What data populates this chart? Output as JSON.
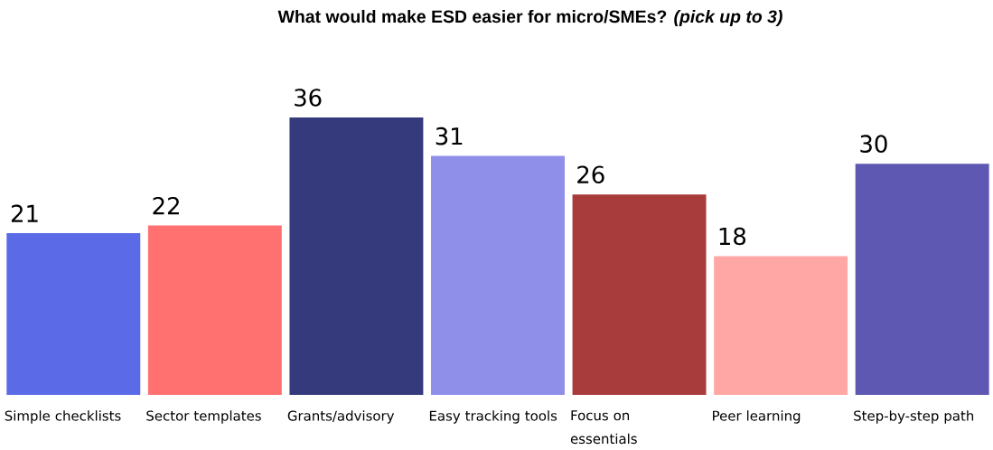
{
  "chart_data": {
    "type": "bar",
    "title": "What would make ESD easier for micro/SMEs? *(pick up to 3)*",
    "categories": [
      "Simple checklists",
      "Sector templates",
      "Grants/advisory",
      "Easy tracking tools",
      "Focus on essentials",
      "Peer learning",
      "Step-by-step path"
    ],
    "values": [
      21,
      22,
      36,
      31,
      26,
      18,
      30
    ],
    "colors": [
      "#5b6be8",
      "#ff7170",
      "#343a7c",
      "#8f8ee9",
      "#a83b3b",
      "#ffa7a5",
      "#5f58b2"
    ],
    "data_labels": true
  }
}
